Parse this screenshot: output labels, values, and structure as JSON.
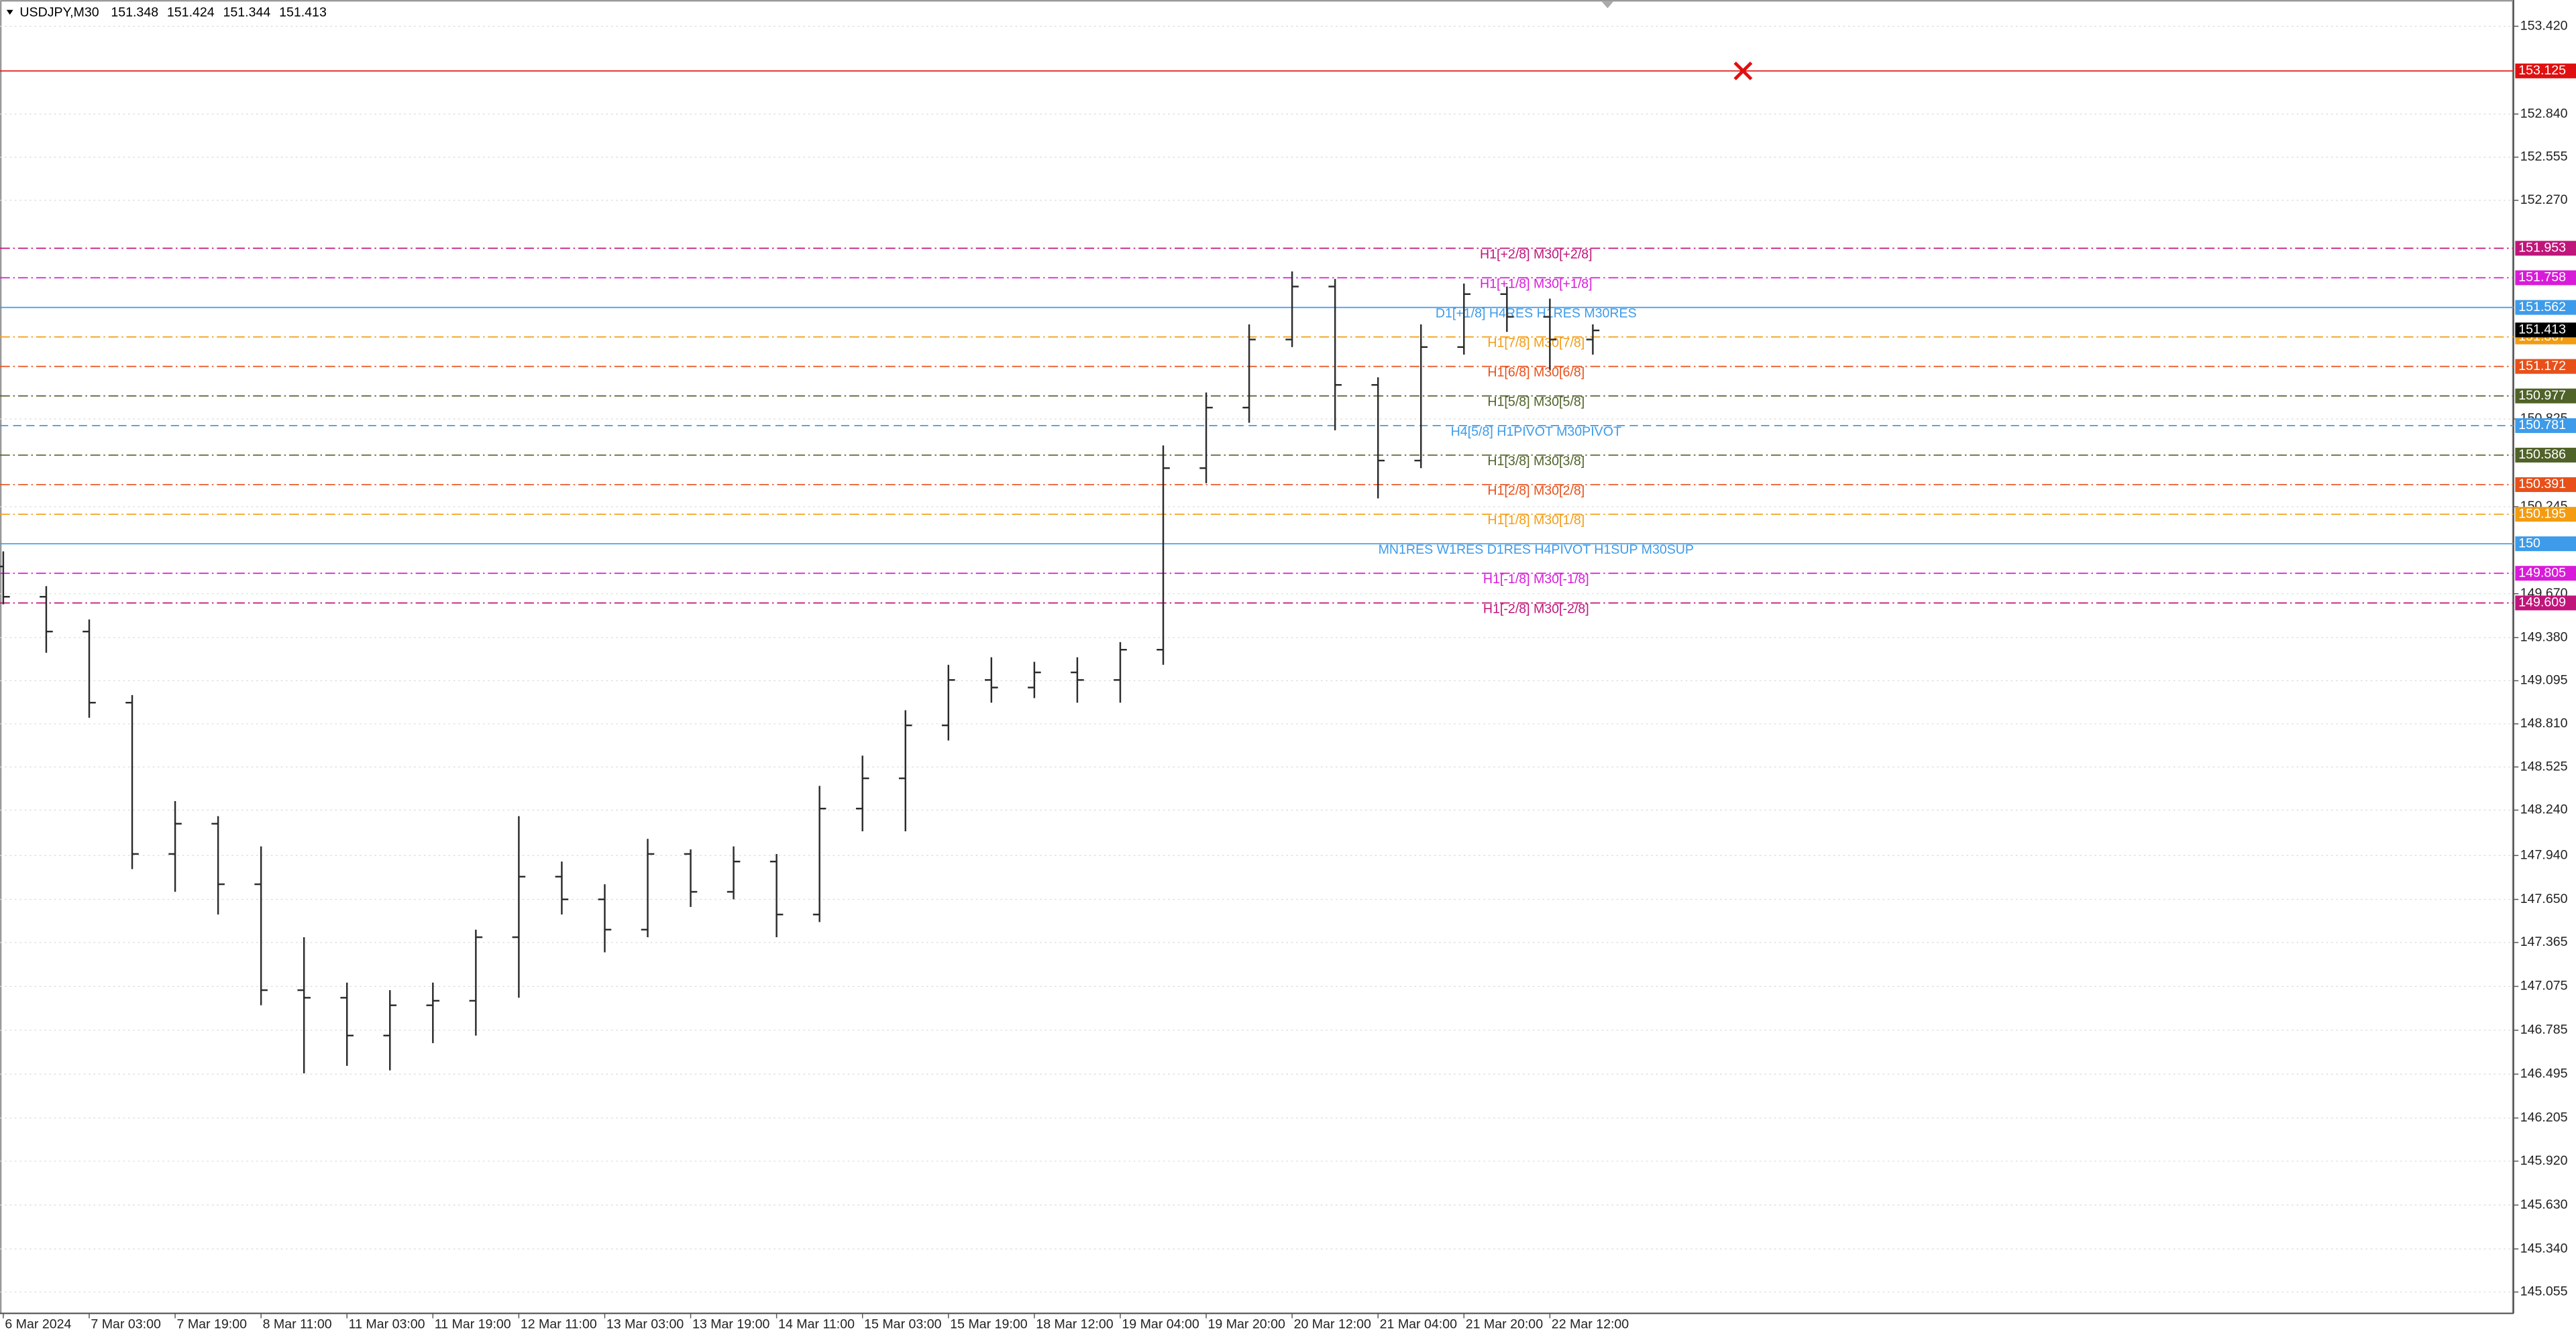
{
  "chart_data": {
    "type": "ohlc",
    "symbol": "USDJPY,M30",
    "header_prices": [
      151.348,
      151.424,
      151.344,
      151.413
    ],
    "bar_color": "#2b2b2b",
    "categories": [
      "6 Mar 2024",
      null,
      "7 Mar 03:00",
      null,
      "7 Mar 19:00",
      null,
      "8 Mar 11:00",
      null,
      "11 Mar 03:00",
      null,
      "11 Mar 19:00",
      null,
      "12 Mar 11:00",
      null,
      "13 Mar 03:00",
      null,
      "13 Mar 19:00",
      null,
      "14 Mar 11:00",
      null,
      "15 Mar 03:00",
      null,
      "15 Mar 19:00",
      null,
      "18 Mar 12:00",
      null,
      "19 Mar 04:00",
      null,
      "19 Mar 20:00",
      null,
      "20 Mar 12:00",
      null,
      "21 Mar 04:00",
      null,
      "21 Mar 20:00",
      null,
      "22 Mar 12:00",
      null
    ],
    "open": [
      149.85,
      149.65,
      149.42,
      148.95,
      147.95,
      148.15,
      147.75,
      147.05,
      147.0,
      146.75,
      146.95,
      146.98,
      147.4,
      147.8,
      147.65,
      147.45,
      147.95,
      147.7,
      147.9,
      147.55,
      148.25,
      148.45,
      148.8,
      149.1,
      149.05,
      149.15,
      149.1,
      149.3,
      150.5,
      150.9,
      151.35,
      151.7,
      151.05,
      150.55,
      151.3,
      151.65,
      151.5,
      151.35
    ],
    "high": [
      149.95,
      149.72,
      149.5,
      149.0,
      148.3,
      148.2,
      148.0,
      147.4,
      147.1,
      147.05,
      147.1,
      147.45,
      148.2,
      147.9,
      147.75,
      148.05,
      147.98,
      148.0,
      147.95,
      148.4,
      148.6,
      148.9,
      149.2,
      149.25,
      149.22,
      149.25,
      149.35,
      150.65,
      151.0,
      151.45,
      151.8,
      151.75,
      151.1,
      151.45,
      151.72,
      151.7,
      151.62,
      151.45
    ],
    "low": [
      149.6,
      149.28,
      148.85,
      147.85,
      147.7,
      147.55,
      146.95,
      146.5,
      146.55,
      146.52,
      146.7,
      146.75,
      147.0,
      147.55,
      147.3,
      147.4,
      147.6,
      147.65,
      147.4,
      147.5,
      148.1,
      148.1,
      148.7,
      148.95,
      148.98,
      148.95,
      148.95,
      149.2,
      150.4,
      150.8,
      151.3,
      150.75,
      150.3,
      150.5,
      151.25,
      151.4,
      151.15,
      151.25
    ],
    "close": [
      149.65,
      149.42,
      148.95,
      147.95,
      148.15,
      147.75,
      147.05,
      147.0,
      146.75,
      146.95,
      146.98,
      147.4,
      147.8,
      147.65,
      147.45,
      147.95,
      147.7,
      147.9,
      147.55,
      148.25,
      148.45,
      148.8,
      149.1,
      149.05,
      149.15,
      149.1,
      149.3,
      150.5,
      150.9,
      151.35,
      151.7,
      151.05,
      150.55,
      151.3,
      151.65,
      151.5,
      151.35,
      151.41
    ],
    "ylim": [
      144.914,
      153.572
    ],
    "yticks": [
      {
        "value": 153.42,
        "label": "153.420"
      },
      {
        "value": 152.84,
        "label": "152.840"
      },
      152.555,
      {
        "value": 152.27,
        "label": "152.270"
      },
      150.825,
      150.245,
      {
        "value": 149.67,
        "label": "149.670"
      },
      {
        "value": 149.38,
        "label": "149.380"
      },
      149.095,
      {
        "value": 148.81,
        "label": "148.810"
      },
      148.525,
      {
        "value": 148.24,
        "label": "148.240"
      },
      {
        "value": 147.94,
        "label": "147.940"
      },
      {
        "value": 147.65,
        "label": "147.650"
      },
      147.365,
      147.075,
      146.785,
      146.495,
      146.205,
      {
        "value": 145.92,
        "label": "145.920"
      },
      {
        "value": 145.63,
        "label": "145.630"
      },
      {
        "value": 145.34,
        "label": "145.340"
      },
      145.055
    ],
    "grid": true,
    "current_price": 151.413,
    "current_price_color": "#000000",
    "levels": [
      {
        "value": 153.125,
        "color": "#e01010",
        "style": "solid"
      },
      {
        "value": 151.953,
        "color": "#c0157a",
        "style": "dashdot",
        "label": "H1[+2/8] M30[+2/8]"
      },
      {
        "value": 151.758,
        "color": "#d81bd8",
        "style": "dashdot",
        "label": "H1[+1/8] M30[+1/8]"
      },
      {
        "value": 151.562,
        "color": "#3d9be9",
        "style": "solid",
        "label": "D1[+1/8] H4RES H1RES M30RES"
      },
      {
        "value": 151.367,
        "color": "#f39c12",
        "style": "dashdot",
        "label": "H1[7/8] M30[7/8]"
      },
      {
        "value": 151.172,
        "color": "#e8501a",
        "style": "dashdot",
        "label": "H1[6/8] M30[6/8]"
      },
      {
        "value": 150.977,
        "color": "#4f6228",
        "style": "dashdot",
        "label": "H1[5/8] M30[5/8]"
      },
      {
        "value": 150.781,
        "color": "#3d9be9",
        "style": "dashed",
        "label": "H4[5/8] H1PIVOT M30PIVOT"
      },
      {
        "value": 150.586,
        "color": "#4f6228",
        "style": "dashdot",
        "label": "H1[3/8] M30[3/8]"
      },
      {
        "value": 150.391,
        "color": "#e8501a",
        "style": "dashdot",
        "label": "H1[2/8] M30[2/8]"
      },
      {
        "value": 150.195,
        "color": "#f39c12",
        "style": "dashdot",
        "label": "H1[1/8] M30[1/8]"
      },
      {
        "value": 150,
        "color": "#3d9be9",
        "style": "solid",
        "label": "MN1RES W1RES D1RES H4PIVOT H1SUP M30SUP"
      },
      {
        "value": 149.805,
        "color": "#d81bd8",
        "style": "dashdot",
        "label": "H1[-1/8] M30[-1/8]"
      },
      {
        "value": 149.609,
        "color": "#c0157a",
        "style": "dashdot",
        "label": "H1[-2/8] M30[-2/8]"
      }
    ]
  }
}
